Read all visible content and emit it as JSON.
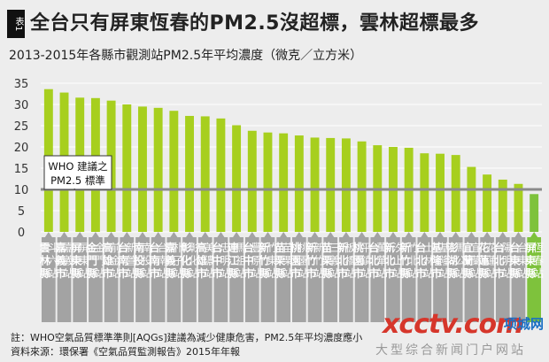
{
  "header": {
    "badge": "表1",
    "title": "全台只有屏東恆春的PM2.5沒超標，雲林超標最多",
    "subtitle": "2013-2015年各縣市觀測站PM2.5年平均濃度（微克／立方米）"
  },
  "chart_data": {
    "type": "bar",
    "ylim": [
      0,
      35
    ],
    "yticks": [
      0,
      5,
      10,
      15,
      20,
      25,
      30,
      35
    ],
    "reference_line": 10,
    "annotation": [
      "WHO 建議之",
      "PM2.5 標準"
    ],
    "categories": [
      "雲林縣斗六站",
      "嘉義市嘉義站",
      "屏東縣屏東站",
      "金門縣金門站",
      "高雄市前金站",
      "台南市新營站",
      "南投縣南投站",
      "台南市台南站",
      "嘉義縣朴子站",
      "彰化縣彰化站",
      "高雄市美濃站",
      "台中市忠明站",
      "連江縣馬祖站",
      "台中市豐原站",
      "新竹縣竹東站",
      "苗栗縣苗栗站",
      "桃園市桃園站",
      "新竹市新竹站",
      "苗栗縣三義站",
      "新北市板橋站",
      "桃園市平鎮站",
      "台北市萬華站",
      "新北市汐止站",
      "新竹縣竹北站",
      "台北市士林站",
      "基隆市基隆站",
      "澎湖縣馬公站",
      "宜蘭縣宜蘭站",
      "花蓮縣花蓮站",
      "台北市陽明站",
      "台東縣台東站",
      "屏東縣恆春站"
    ],
    "values": [
      33.6,
      32.8,
      31.6,
      31.5,
      30.9,
      30.0,
      29.5,
      29.2,
      28.5,
      27.3,
      27.2,
      26.7,
      25.1,
      23.8,
      23.4,
      23.2,
      22.7,
      22.2,
      22.1,
      22.0,
      21.3,
      20.4,
      20.0,
      19.8,
      18.5,
      18.4,
      18.1,
      15.3,
      13.5,
      12.3,
      11.3,
      8.9
    ],
    "colors": {
      "bar": "#a7cf1e",
      "bar_last": "#7ec23c",
      "bar_edge": "#8db517",
      "reference": "#8a8a8a",
      "grid": "#ffffff",
      "label_bg": "#a3a3a3"
    }
  },
  "notes": {
    "line1": "註：WHO空氣品質標準準則[AQGs]建議為減少健康危害，PM2.5年平均濃度應小",
    "line2": "資料來源：環保署《空氣品質監測報告》2015年年報"
  },
  "watermark": {
    "logo": "xcctv.com",
    "name": "项城网",
    "tag": "大型综合新闻门户网站"
  }
}
